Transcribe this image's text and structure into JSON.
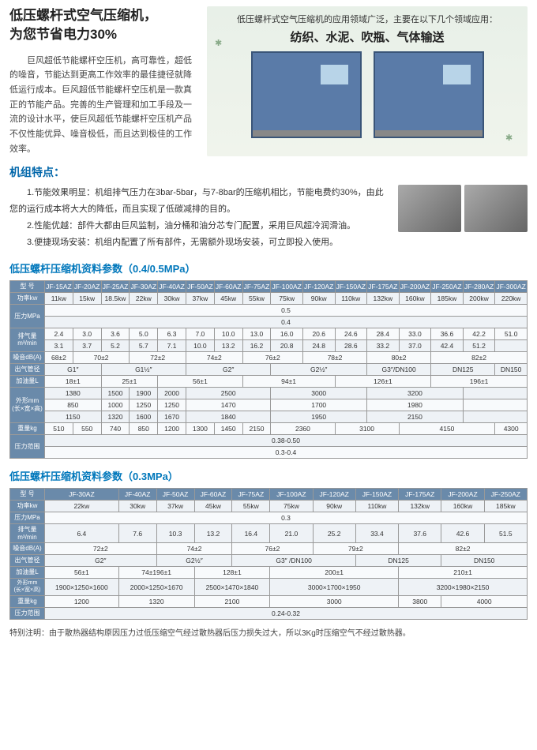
{
  "hero": {
    "title_l1": "低压螺杆式空气压缩机，",
    "title_l2": "为您节省电力30%",
    "desc": "巨风超低节能螺杆空压机，高可靠性，超低的噪音，节能达到更高工作效率的最佳捷径就降低运行成本。巨风超低节能螺杆空压机是一款真正的节能产品。完善的生产管理和加工手段及一流的设计水平，使巨风超低节能螺杆空压机产品不仅性能优异、噪音极低，而且达到极佳的工作效率。",
    "apps_line": "低压螺杆式空气压缩机的应用领域广泛，主要在以下几个领域应用：",
    "apps_cats": "纺织、水泥、吹瓶、气体输送"
  },
  "features": {
    "header": "机组特点：",
    "f1": "1.节能效果明显：机组排气压力在3bar-5bar，与7-8bar的压缩机相比，节能电费约30%，由此您的运行成本将大大的降低，而且实现了低碳减排的目的。",
    "f2": "2.性能优越：部件大都由巨风监制，油分桶和油分芯专门配置，采用巨风超冷润滑油。",
    "f3": "3.便捷现场安装：机组内配置了所有部件，无需额外现场安装，可立即投入使用。"
  },
  "table1": {
    "title": "低压螺杆压缩机资料参数（0.4/0.5MPa）",
    "hdr_model": "型 号",
    "models": [
      "JF-15AZ",
      "JF-20AZ",
      "JF-25AZ",
      "JF-30AZ",
      "JF-40AZ",
      "JF-50AZ",
      "JF-60AZ",
      "JF-75AZ",
      "JF-100AZ",
      "JF-120AZ",
      "JF-150AZ",
      "JF-175AZ",
      "JF-200AZ",
      "JF-250AZ",
      "JF-280AZ",
      "JF-300AZ"
    ],
    "row_power": "功率kw",
    "power": [
      "11kw",
      "15kw",
      "18.5kw",
      "22kw",
      "30kw",
      "37kw",
      "45kw",
      "55kw",
      "75kw",
      "90kw",
      "110kw",
      "132kw",
      "160kw",
      "185kw",
      "200kw",
      "220kw"
    ],
    "row_pressure": "压力MPa",
    "pressure_a": "0.5",
    "pressure_b": "0.4",
    "row_flow": "排气量\nm³/min",
    "flow_a": [
      "2.4",
      "3.0",
      "3.6",
      "5.0",
      "6.3",
      "7.0",
      "10.0",
      "13.0",
      "16.0",
      "20.6",
      "24.6",
      "28.4",
      "33.0",
      "36.6",
      "42.2",
      "51.0"
    ],
    "flow_b": [
      "3.1",
      "3.7",
      "5.2",
      "5.7",
      "7.1",
      "10.0",
      "13.2",
      "16.2",
      "20.8",
      "24.8",
      "28.6",
      "33.2",
      "37.0",
      "42.4",
      "51.2",
      ""
    ],
    "row_noise": "噪音dB(A)",
    "noise": [
      [
        "68±2",
        "1"
      ],
      [
        "70±2",
        "2"
      ],
      [
        "72±2",
        "2"
      ],
      [
        "74±2",
        "2"
      ],
      [
        "76±2",
        "2"
      ],
      [
        "78±2",
        "2"
      ],
      [
        "80±2",
        "2"
      ],
      [
        "82±2",
        "3"
      ]
    ],
    "row_pipe": "出气管径",
    "pipe": [
      [
        "G1″",
        "2"
      ],
      [
        "G1½″",
        "3"
      ],
      [
        "G2″",
        "3"
      ],
      [
        "G2½″",
        "3"
      ],
      [
        "G3″/DN100",
        "2"
      ],
      [
        "DN125",
        "2"
      ],
      [
        "DN150",
        "1"
      ]
    ],
    "row_oil": "加油量L",
    "oil": [
      [
        "18±1",
        "2"
      ],
      [
        "25±1",
        "2"
      ],
      [
        "56±1",
        "3"
      ],
      [
        "94±1",
        "3"
      ],
      [
        "126±1",
        "3"
      ],
      [
        "196±1",
        "3"
      ]
    ],
    "row_dim": "外形mm\n(长×宽×高)",
    "dim1": [
      [
        "1380",
        "2"
      ],
      [
        "1500",
        "1"
      ],
      [
        "1900",
        "1"
      ],
      [
        "2000",
        "1"
      ],
      [
        "2500",
        "3"
      ],
      [
        "3000",
        "3"
      ],
      [
        "3200",
        "3"
      ],
      [
        "",
        "2"
      ]
    ],
    "dim2": [
      [
        "850",
        "2"
      ],
      [
        "1000",
        "1"
      ],
      [
        "1250",
        "1"
      ],
      [
        "1250",
        "1"
      ],
      [
        "1470",
        "3"
      ],
      [
        "1700",
        "3"
      ],
      [
        "1980",
        "3"
      ],
      [
        "",
        "2"
      ]
    ],
    "dim3": [
      [
        "1150",
        "2"
      ],
      [
        "1320",
        "1"
      ],
      [
        "1600",
        "1"
      ],
      [
        "1670",
        "1"
      ],
      [
        "1840",
        "3"
      ],
      [
        "1950",
        "3"
      ],
      [
        "2150",
        "3"
      ],
      [
        "",
        "2"
      ]
    ],
    "row_weight": "重量kg",
    "weight": [
      [
        "510",
        "1"
      ],
      [
        "550",
        "1"
      ],
      [
        "740",
        "1"
      ],
      [
        "850",
        "1"
      ],
      [
        "1200",
        "1"
      ],
      [
        "1300",
        "1"
      ],
      [
        "1450",
        "1"
      ],
      [
        "2150",
        "1"
      ],
      [
        "2360",
        "2"
      ],
      [
        "3100",
        "2"
      ],
      [
        "4150",
        "3"
      ],
      [
        "4300",
        "1"
      ]
    ],
    "row_range": "压力范围",
    "range_a": "0.38-0.50",
    "range_b": "0.3-0.4"
  },
  "table2": {
    "title": "低压螺杆压缩机资料参数（0.3MPa）",
    "models": [
      "JF-30AZ",
      "JF-40AZ",
      "JF-50AZ",
      "JF-60AZ",
      "JF-75AZ",
      "JF-100AZ",
      "JF-120AZ",
      "JF-150AZ",
      "JF-175AZ",
      "JF-200AZ",
      "JF-250AZ"
    ],
    "power": [
      "22kw",
      "30kw",
      "37kw",
      "45kw",
      "55kw",
      "75kw",
      "90kw",
      "110kw",
      "132kw",
      "160kw",
      "185kw"
    ],
    "pressure": "0.3",
    "row_flow2": "排气量m³/min",
    "flow": [
      "6.4",
      "7.6",
      "10.3",
      "13.2",
      "16.4",
      "21.0",
      "25.2",
      "33.4",
      "37.6",
      "42.6",
      "51.5"
    ],
    "noise": [
      [
        "72±2",
        "2"
      ],
      [
        "74±2",
        "2"
      ],
      [
        "76±2",
        "2"
      ],
      [
        "79±2",
        "2"
      ],
      [
        "82±2",
        "3"
      ]
    ],
    "pipe": [
      [
        "G2″",
        "2"
      ],
      [
        "G2½″",
        "2"
      ],
      [
        "G3″ /DN100",
        "3"
      ],
      [
        "DN125",
        "2"
      ],
      [
        "DN150",
        "2"
      ]
    ],
    "oil": [
      [
        "56±1",
        "1"
      ],
      [
        "74±196±1",
        "2"
      ],
      [
        "128±1",
        "2"
      ],
      [
        "200±1",
        "3"
      ],
      [
        "210±1",
        "3"
      ]
    ],
    "row_dim2": "外形mm\n(长×宽×高)",
    "dims": [
      [
        "1900×1250×1600",
        "1"
      ],
      [
        "2000×1250×1670",
        "2"
      ],
      [
        "2500×1470×1840",
        "2"
      ],
      [
        "3000×1700×1950",
        "3"
      ],
      [
        "3200×1980×2150",
        "3"
      ]
    ],
    "weight": [
      [
        "1200",
        "1"
      ],
      [
        "1320",
        "2"
      ],
      [
        "2100",
        "2"
      ],
      [
        "3000",
        "3"
      ],
      [
        "3800",
        "1"
      ],
      [
        "4000",
        "2"
      ]
    ],
    "range": "0.24-0.32"
  },
  "footnote": "特别注明：由于散热器结构原因压力过低压缩空气经过散热器后压力损失过大，所以3Kg时压缩空气不经过散热器。"
}
